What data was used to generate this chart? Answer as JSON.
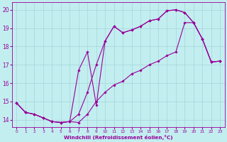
{
  "xlabel": "Windchill (Refroidissement éolien,°C)",
  "background_color": "#c2eef0",
  "line_color": "#990099",
  "xlim": [
    -0.5,
    23.5
  ],
  "ylim": [
    13.6,
    20.4
  ],
  "yticks": [
    14,
    15,
    16,
    17,
    18,
    19,
    20
  ],
  "xticks": [
    0,
    1,
    2,
    3,
    4,
    5,
    6,
    7,
    8,
    9,
    10,
    11,
    12,
    13,
    14,
    15,
    16,
    17,
    18,
    19,
    20,
    21,
    22,
    23
  ],
  "line1_y": [
    14.9,
    14.4,
    14.3,
    14.1,
    13.9,
    13.85,
    13.9,
    14.3,
    15.5,
    17.0,
    18.3,
    19.1,
    18.75,
    18.9,
    19.1,
    19.4,
    19.5,
    19.95,
    20.0,
    19.85,
    19.3,
    18.4,
    17.15,
    17.2
  ],
  "line2_y": [
    14.9,
    14.4,
    14.3,
    14.1,
    13.9,
    13.85,
    13.9,
    16.7,
    17.7,
    14.8,
    18.3,
    19.1,
    18.75,
    18.9,
    19.1,
    19.4,
    19.5,
    19.95,
    20.0,
    19.85,
    19.3,
    18.4,
    17.15,
    17.2
  ],
  "line3_y": [
    14.9,
    14.4,
    14.3,
    14.1,
    13.9,
    13.85,
    13.9,
    13.85,
    14.3,
    15.0,
    15.5,
    15.9,
    16.1,
    16.5,
    16.7,
    17.0,
    17.2,
    17.5,
    17.7,
    19.3,
    19.3,
    18.4,
    17.15,
    17.2
  ]
}
